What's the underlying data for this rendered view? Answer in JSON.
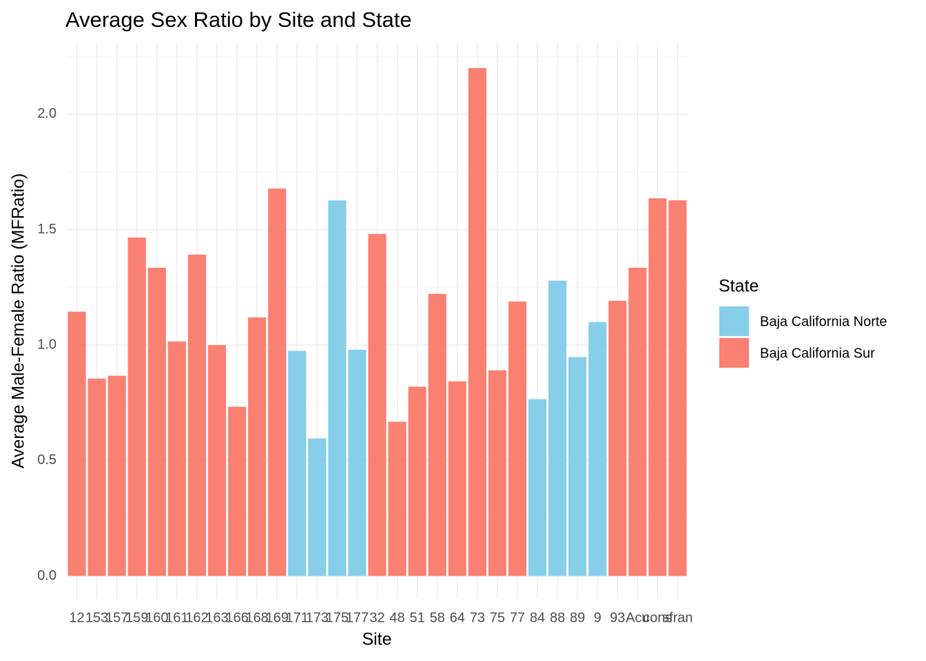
{
  "chart_data": {
    "type": "bar",
    "title": "Average Sex Ratio by Site and State",
    "x_label": "Site",
    "y_label": "Average Male-Female Ratio (MFRatio)",
    "legend_title": "State",
    "categories": [
      "12",
      "153",
      "157",
      "159",
      "160",
      "161",
      "162",
      "163",
      "166",
      "168",
      "169",
      "171",
      "173",
      "175",
      "177",
      "32",
      "48",
      "51",
      "58",
      "64",
      "73",
      "75",
      "77",
      "84",
      "88",
      "89",
      "9",
      "93",
      "Acu",
      "cons",
      "sfran"
    ],
    "series": [
      {
        "name": "Baja California Norte",
        "color": "#87ceeb",
        "values": [
          null,
          null,
          null,
          null,
          null,
          null,
          null,
          null,
          null,
          null,
          null,
          0.975,
          0.596,
          1.627,
          0.98,
          null,
          null,
          null,
          null,
          null,
          null,
          null,
          null,
          0.766,
          1.279,
          0.948,
          1.1,
          null,
          null,
          null,
          null
        ]
      },
      {
        "name": "Baja California Sur",
        "color": "#fa8072",
        "values": [
          1.145,
          0.855,
          0.867,
          1.466,
          1.335,
          1.016,
          1.392,
          1.0,
          0.733,
          1.12,
          1.678,
          null,
          null,
          null,
          null,
          1.481,
          0.668,
          0.82,
          1.222,
          0.843,
          2.2,
          0.891,
          1.189,
          null,
          null,
          null,
          null,
          1.192,
          1.335,
          1.636,
          1.627
        ]
      }
    ],
    "ylim": [
      -0.1,
      2.31
    ],
    "yticks": [
      {
        "value": 0,
        "label": "0.0"
      },
      0.5,
      {
        "value": 1,
        "label": "1.0"
      },
      1.5,
      {
        "value": 2,
        "label": "2.0"
      }
    ],
    "grid": true
  }
}
